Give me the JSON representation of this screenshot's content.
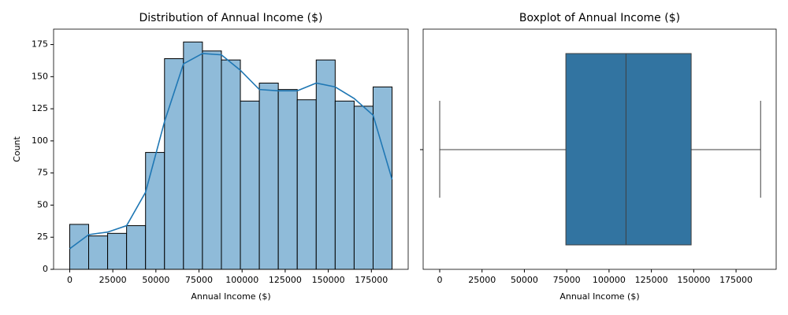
{
  "chart_data": [
    {
      "type": "histogram",
      "title": "Distribution of Annual Income ($)",
      "x_label": "Annual Income ($)",
      "y_label": "Count",
      "bins": [
        0,
        11000,
        22000,
        33000,
        44000,
        55000,
        66000,
        77000,
        88000,
        99000,
        110000,
        121000,
        132000,
        143000,
        154000,
        165000,
        176000,
        187000
      ],
      "values": [
        35,
        26,
        28,
        34,
        91,
        164,
        177,
        170,
        163,
        131,
        145,
        140,
        132,
        163,
        131,
        127,
        142
      ],
      "color": "#8fbbd9",
      "edge_color": "#000000",
      "kde": {
        "color": "#1f77b4",
        "x": [
          0,
          11000,
          22000,
          33000,
          44000,
          55000,
          66000,
          77000,
          88000,
          99000,
          110000,
          121000,
          132000,
          143000,
          154000,
          165000,
          176000,
          187000
        ],
        "values": [
          16,
          27,
          29,
          34,
          60,
          115,
          160,
          168,
          167,
          155,
          140,
          139,
          139,
          145,
          142,
          133,
          120,
          70
        ]
      },
      "xlim": [
        -9350,
        196350
      ],
      "xticks": [
        0,
        25000,
        50000,
        75000,
        100000,
        125000,
        150000,
        175000
      ],
      "ylim": [
        0,
        187
      ],
      "yticks": [
        0,
        25,
        50,
        75,
        100,
        125,
        150,
        175
      ]
    },
    {
      "type": "box",
      "title": "Boxplot of Annual Income ($)",
      "x_label": "Annual Income ($)",
      "min": 0,
      "q1": 74500,
      "median": 110000,
      "q3": 148500,
      "max": 189500,
      "color": "#3274a1",
      "line_color": "#3f3f3f",
      "xlim": [
        -9770,
        198700
      ],
      "xticks": [
        0,
        25000,
        50000,
        75000,
        100000,
        125000,
        150000,
        175000
      ]
    }
  ]
}
